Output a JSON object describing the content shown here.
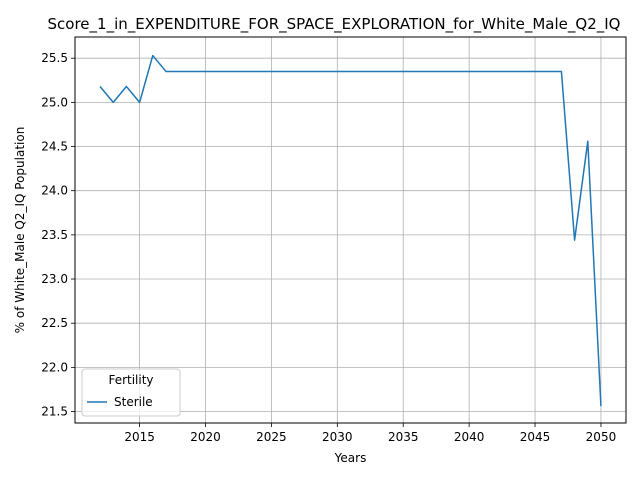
{
  "chart_data": {
    "type": "line",
    "title": "Score_1_in_EXPENDITURE_FOR_SPACE_EXPLORATION_for_White_Male_Q2_IQ",
    "xlabel": "Years",
    "ylabel": "% of White_Male Q2_IQ Population",
    "xlim": [
      2010.1,
      2051.9
    ],
    "ylim": [
      21.37,
      25.74
    ],
    "x_ticks": [
      2015,
      2020,
      2025,
      2030,
      2035,
      2040,
      2045,
      2050
    ],
    "y_ticks": [
      21.5,
      22.0,
      22.5,
      23.0,
      23.5,
      24.0,
      24.5,
      25.0,
      25.5
    ],
    "grid": true,
    "legend": {
      "title": "Fertility",
      "placement": "lower-left"
    },
    "series": [
      {
        "name": "Sterile",
        "color": "#1f77b4",
        "x": [
          2012,
          2013,
          2014,
          2015,
          2016,
          2017,
          2018,
          2019,
          2020,
          2021,
          2022,
          2023,
          2024,
          2025,
          2026,
          2027,
          2028,
          2029,
          2030,
          2031,
          2032,
          2033,
          2034,
          2035,
          2036,
          2037,
          2038,
          2039,
          2040,
          2041,
          2042,
          2043,
          2044,
          2045,
          2046,
          2047,
          2048,
          2049,
          2050
        ],
        "values": [
          25.18,
          25.0,
          25.18,
          25.0,
          25.53,
          25.35,
          25.35,
          25.35,
          25.35,
          25.35,
          25.35,
          25.35,
          25.35,
          25.35,
          25.35,
          25.35,
          25.35,
          25.35,
          25.35,
          25.35,
          25.35,
          25.35,
          25.35,
          25.35,
          25.35,
          25.35,
          25.35,
          25.35,
          25.35,
          25.35,
          25.35,
          25.35,
          25.35,
          25.35,
          25.35,
          25.35,
          23.44,
          24.56,
          21.56
        ]
      }
    ]
  }
}
